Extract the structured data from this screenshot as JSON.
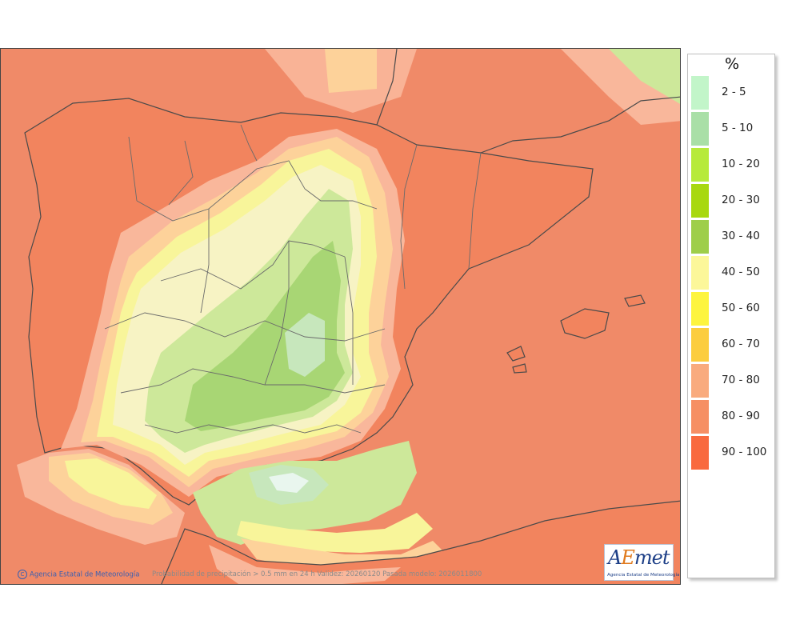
{
  "map": {
    "region": "Iberian Peninsula and Balearic Islands",
    "colors": {
      "sea_far": "#f08a68",
      "very_high": "#f2845e",
      "high": "#f79a7a",
      "medium_high": "#f9b79b",
      "medium": "#fdd29a",
      "yellow": "#f8f59a",
      "pale_yellow": "#f7f3c4",
      "light_green": "#cde89a",
      "green": "#a8d674",
      "pale_green": "#c7e7bc",
      "border": "#4a4a4a"
    }
  },
  "legend": {
    "title": "%",
    "items": [
      {
        "label": "2 - 5",
        "color": "#c2f5c9"
      },
      {
        "label": "5 - 10",
        "color": "#a9dfa7"
      },
      {
        "label": "10 - 20",
        "color": "#b7ea3a"
      },
      {
        "label": "20 - 30",
        "color": "#a8d80f"
      },
      {
        "label": "30 - 40",
        "color": "#9ece4a"
      },
      {
        "label": "40 - 50",
        "color": "#fcf79a"
      },
      {
        "label": "50 - 60",
        "color": "#fdf43e"
      },
      {
        "label": "60 - 70",
        "color": "#fccd3e"
      },
      {
        "label": "70 - 80",
        "color": "#f9ab7e"
      },
      {
        "label": "80 - 90",
        "color": "#f68f64"
      },
      {
        "label": "90 - 100",
        "color": "#f96a3e"
      }
    ]
  },
  "footer": {
    "copyright_symbol": "C",
    "copyright": "Agencia Estatal de Meteorología",
    "caption": "Probabilidad de precipitación > 0.5 mm en 24 h Validez: 20260120 Pasada modelo: 2026011800"
  },
  "logo": {
    "word_a": "A",
    "word_e": "E",
    "word_rest": "met",
    "subtitle": "Agencia Estatal de Meteorología"
  }
}
